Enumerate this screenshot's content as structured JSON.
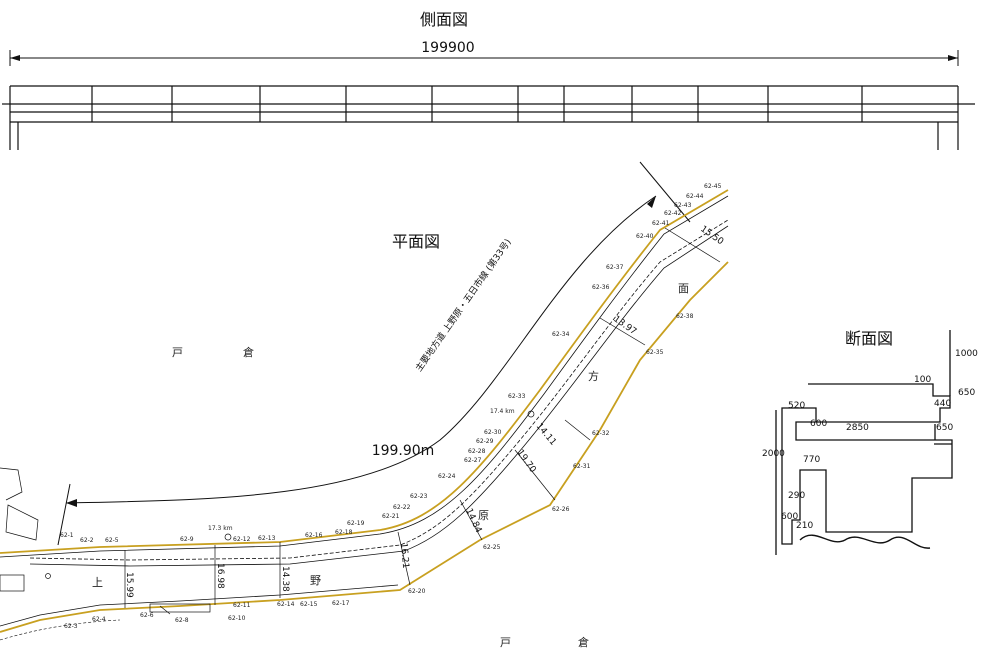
{
  "side_view": {
    "title": "側面図",
    "length": "199900"
  },
  "plan_view": {
    "title": "平面図",
    "length": "199.90m",
    "route_name": "主要地方道 上野原・五日市線 (第33号)",
    "place_north": [
      "戸",
      "倉"
    ],
    "place_south": [
      "戸",
      "倉"
    ],
    "km_marks": [
      "17.4 km",
      "17.3 km"
    ],
    "widths": [
      "15.99",
      "16.98",
      "14.38",
      "16.21",
      "14.84",
      "19.70",
      "14.11",
      "13.97",
      "15.50"
    ],
    "lot_labels_north": [
      "62-1",
      "62-2",
      "62-5",
      "62-9",
      "62-12",
      "62-13",
      "62-16",
      "62-18",
      "62-19",
      "62-21",
      "62-22",
      "62-23",
      "62-24",
      "62-27",
      "62-28",
      "62-29",
      "62-30",
      "62-33",
      "62-34",
      "62-36",
      "62-37",
      "62-40",
      "62-41",
      "62-42",
      "62-43",
      "62-44",
      "62-45"
    ],
    "lot_labels_south": [
      "62-3",
      "62-4",
      "62-6",
      "62-8",
      "62-10",
      "62-11",
      "62-14",
      "62-15",
      "62-17",
      "62-20",
      "62-25",
      "62-26",
      "62-31",
      "62-32",
      "62-35",
      "62-38"
    ],
    "road_chars": [
      "上",
      "野",
      "原",
      "方",
      "面"
    ]
  },
  "section_view": {
    "title": "断面図",
    "dims": [
      "1000",
      "100",
      "650",
      "520",
      "440",
      "600",
      "2850",
      "650",
      "2000",
      "770",
      "290",
      "600",
      "210"
    ]
  }
}
